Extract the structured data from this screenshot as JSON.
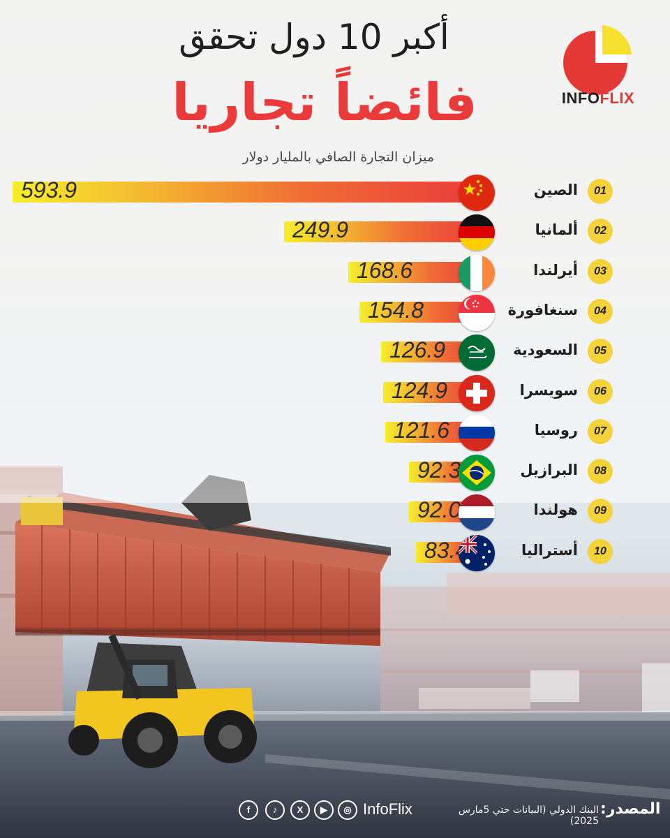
{
  "header": {
    "title_top": "أكبر 10 دول تحقق",
    "title_main": "فائضاً تجاريا",
    "subtitle": "ميزان التجارة الصافي بالمليار دولار"
  },
  "logo": {
    "part1": "INFO",
    "part2": "FLIX",
    "colors": {
      "red": "#e53935",
      "yellow": "#f5e02d"
    }
  },
  "chart_data": {
    "type": "bar",
    "orientation": "horizontal",
    "categories": [
      "الصين",
      "ألمانيا",
      "أيرلندا",
      "سنغافورة",
      "السعودية",
      "سويسرا",
      "روسيا",
      "البرازيل",
      "هولندا",
      "أستراليا"
    ],
    "ranks": [
      "01",
      "02",
      "03",
      "04",
      "05",
      "06",
      "07",
      "08",
      "09",
      "10"
    ],
    "values": [
      593.9,
      249.9,
      168.6,
      154.8,
      126.9,
      124.9,
      121.6,
      92.3,
      92.0,
      83.4
    ],
    "value_labels": [
      "593.9",
      "249.9",
      "168.6",
      "154.8",
      "126.9",
      "124.9",
      "121.6",
      "92.3",
      "92.0",
      "83.4"
    ],
    "flags": [
      "china-flag-icon",
      "germany-flag-icon",
      "ireland-flag-icon",
      "singapore-flag-icon",
      "saudi-flag-icon",
      "switzerland-flag-icon",
      "russia-flag-icon",
      "brazil-flag-icon",
      "netherlands-flag-icon",
      "australia-flag-icon"
    ],
    "bar_gradient": [
      "#f6ee2a",
      "#ea3b3b"
    ],
    "rank_badge_color": "#f4d23a"
  },
  "footer": {
    "source_label": "المصدر:",
    "source_text": "البنك الدولي (البيانات حتي 5مارس 2025)",
    "handle": "InfoFlix",
    "social_icons": [
      "instagram-icon",
      "youtube-icon",
      "x-icon",
      "tiktok-icon",
      "facebook-icon"
    ]
  }
}
